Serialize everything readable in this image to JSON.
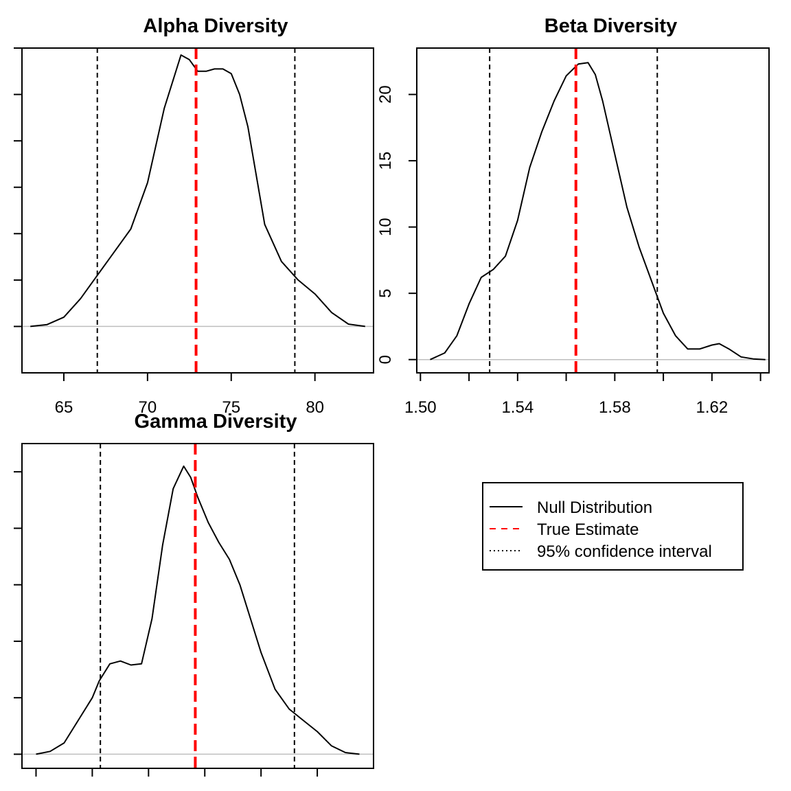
{
  "chart_data": [
    {
      "type": "line",
      "title": "Alpha Diversity",
      "xlabel": "",
      "ylabel": "",
      "xlim": [
        62.5,
        83.5
      ],
      "ylim": [
        -0.1,
        0.6
      ],
      "x_ticks": [
        65,
        70,
        75,
        80
      ],
      "x_tick_labels": [
        "65",
        "70",
        "75",
        "80"
      ],
      "y_ticks": [
        0,
        0.1,
        0.2,
        0.3,
        0.4,
        0.5,
        0.6
      ],
      "y_tick_labels": [],
      "series": [
        {
          "name": "Null Distribution",
          "style": "solid",
          "color": "#000000",
          "x": [
            63.0,
            64.0,
            65.0,
            66.0,
            67.0,
            68.0,
            69.0,
            70.0,
            71.0,
            72.0,
            72.5,
            73.0,
            73.5,
            74.0,
            74.5,
            75.0,
            75.5,
            76.0,
            77.0,
            78.0,
            79.0,
            80.0,
            81.0,
            82.0,
            83.0
          ],
          "y": [
            0.0,
            0.004,
            0.02,
            0.06,
            0.11,
            0.16,
            0.21,
            0.31,
            0.47,
            0.585,
            0.575,
            0.55,
            0.55,
            0.555,
            0.555,
            0.545,
            0.5,
            0.43,
            0.22,
            0.14,
            0.1,
            0.07,
            0.03,
            0.005,
            0.0
          ]
        }
      ],
      "true_estimate": 72.9,
      "ci_lower": 67.0,
      "ci_upper": 78.8,
      "grid": false
    },
    {
      "type": "line",
      "title": "Beta Diversity",
      "xlabel": "",
      "ylabel": "",
      "xlim": [
        1.4985,
        1.6435
      ],
      "ylim": [
        -1,
        23.5
      ],
      "x_ticks": [
        1.5,
        1.54,
        1.58,
        1.62
      ],
      "x_tick_labels": [
        "1.50",
        "1.54",
        "1.58",
        "1.62"
      ],
      "x_minor_ticks": [
        1.52,
        1.56,
        1.6,
        1.64
      ],
      "y_ticks": [
        0,
        5,
        10,
        15,
        20
      ],
      "y_tick_labels": [
        "0",
        "5",
        "10",
        "15",
        "20"
      ],
      "series": [
        {
          "name": "Null Distribution",
          "style": "solid",
          "color": "#000000",
          "x": [
            1.504,
            1.51,
            1.515,
            1.52,
            1.525,
            1.53,
            1.535,
            1.54,
            1.545,
            1.55,
            1.555,
            1.56,
            1.565,
            1.569,
            1.572,
            1.575,
            1.58,
            1.585,
            1.59,
            1.595,
            1.6,
            1.605,
            1.61,
            1.615,
            1.62,
            1.623,
            1.627,
            1.632,
            1.637,
            1.642
          ],
          "y": [
            0.0,
            0.5,
            1.8,
            4.2,
            6.2,
            6.8,
            7.8,
            10.5,
            14.5,
            17.2,
            19.5,
            21.4,
            22.3,
            22.4,
            21.5,
            19.5,
            15.5,
            11.5,
            8.5,
            6.0,
            3.5,
            1.8,
            0.8,
            0.8,
            1.1,
            1.2,
            0.8,
            0.2,
            0.05,
            0.0
          ]
        }
      ],
      "true_estimate": 1.564,
      "ci_lower": 1.5285,
      "ci_upper": 1.5975,
      "grid": false
    },
    {
      "type": "line",
      "title": "Gamma Diversity",
      "xlabel": "",
      "ylabel": "",
      "xlim": [
        0,
        1
      ],
      "ylim": [
        -0.025,
        0.55
      ],
      "y_ticks": [
        0,
        0.1,
        0.2,
        0.3,
        0.4,
        0.5
      ],
      "y_tick_labels": [],
      "x_ticks": [
        0.04,
        0.2,
        0.36,
        0.52,
        0.68,
        0.84
      ],
      "x_tick_labels": [],
      "series": [
        {
          "name": "Null Distribution",
          "style": "solid",
          "color": "#000000",
          "x": [
            0.04,
            0.08,
            0.12,
            0.16,
            0.2,
            0.22,
            0.25,
            0.28,
            0.31,
            0.34,
            0.37,
            0.4,
            0.43,
            0.46,
            0.48,
            0.5,
            0.53,
            0.56,
            0.59,
            0.62,
            0.65,
            0.68,
            0.72,
            0.76,
            0.8,
            0.84,
            0.88,
            0.92,
            0.96
          ],
          "y": [
            0.0,
            0.005,
            0.02,
            0.06,
            0.1,
            0.13,
            0.16,
            0.165,
            0.158,
            0.16,
            0.24,
            0.37,
            0.47,
            0.51,
            0.49,
            0.455,
            0.41,
            0.375,
            0.345,
            0.3,
            0.24,
            0.18,
            0.115,
            0.08,
            0.06,
            0.04,
            0.015,
            0.003,
            0.0
          ]
        }
      ],
      "true_estimate": 0.493,
      "ci_lower": 0.223,
      "ci_upper": 0.775,
      "grid": false
    }
  ],
  "legend": {
    "position": "bottom-right",
    "entries": [
      {
        "label": "Null Distribution",
        "style": "solid",
        "color": "#000000"
      },
      {
        "label": "True Estimate",
        "style": "dashed",
        "color": "#FF0000"
      },
      {
        "label": "95% confidence interval",
        "style": "dotted",
        "color": "#000000"
      }
    ]
  }
}
